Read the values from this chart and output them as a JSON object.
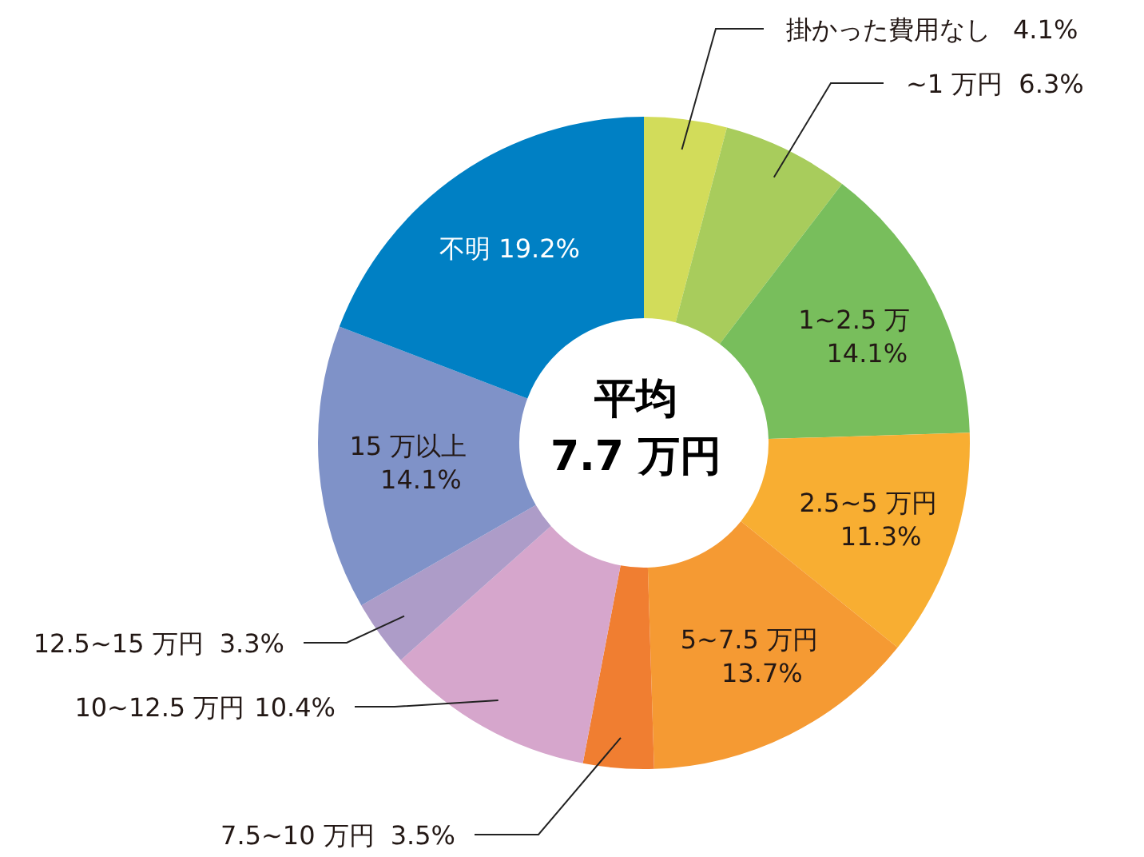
{
  "chart_data": {
    "type": "donut",
    "categories": [
      "掛かった費用なし",
      "~1 万円",
      "1~2.5 万",
      "2.5~5 万円",
      "5~7.5 万円",
      "7.5~10 万円",
      "10~12.5 万円",
      "12.5~15 万円",
      "15 万以上",
      "不明"
    ],
    "values": [
      4.1,
      6.3,
      14.1,
      11.3,
      13.7,
      3.5,
      10.4,
      3.3,
      14.1,
      19.2
    ],
    "value_labels": [
      "4.1%",
      "6.3%",
      "14.1%",
      "11.3%",
      "13.7%",
      "3.5%",
      "10.4%",
      "3.3%",
      "14.1%",
      "19.2%"
    ],
    "colors": [
      "#d2dc5a",
      "#a8cc5c",
      "#78be5c",
      "#f8ae32",
      "#f59a33",
      "#f07e31",
      "#d6a6cc",
      "#ad9cc8",
      "#7f92c8",
      "#0080c4"
    ],
    "annotations": [
      "平均",
      "7.7 万円"
    ],
    "legend": false
  }
}
